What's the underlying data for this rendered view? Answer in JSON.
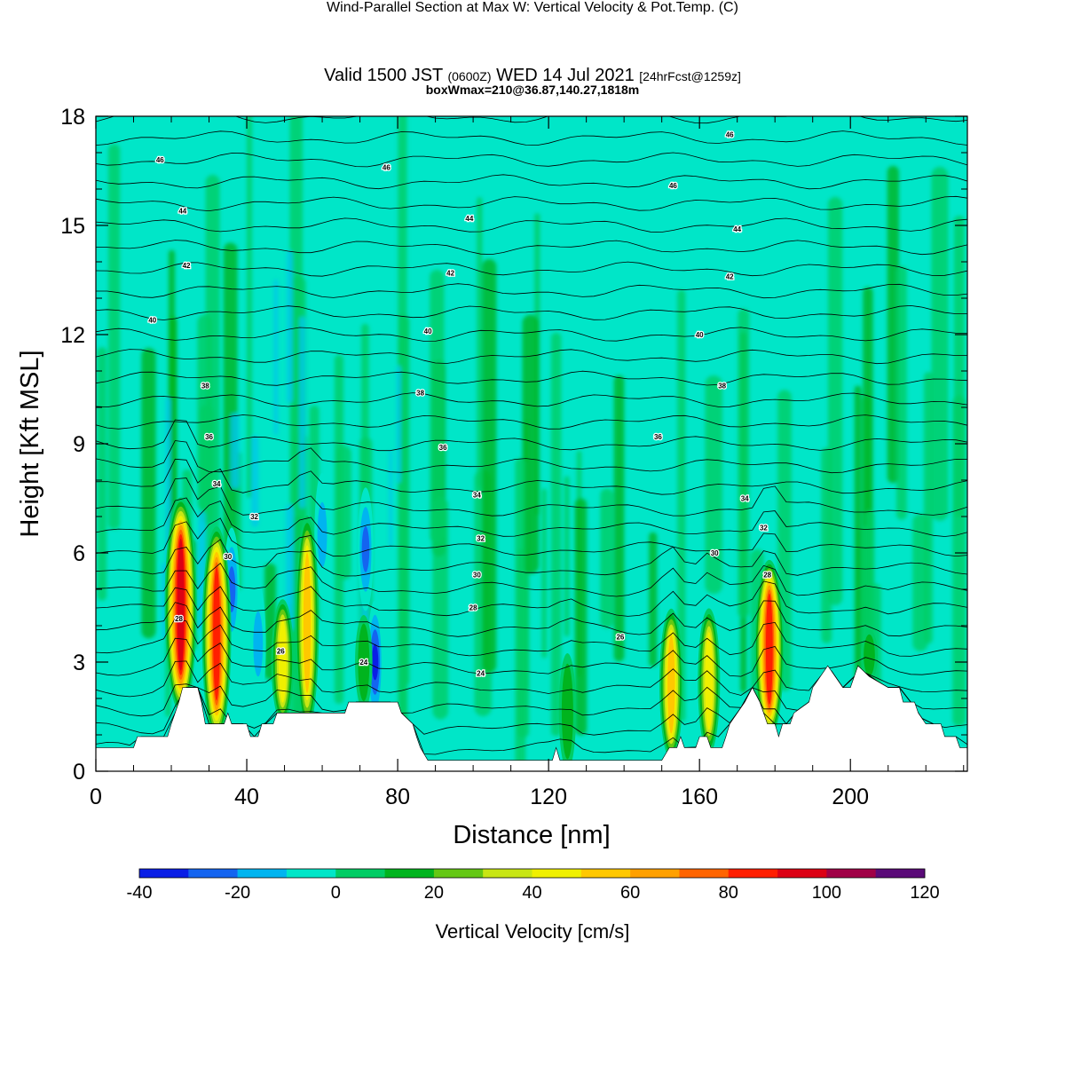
{
  "header": {
    "title": "Wind-Parallel Section at Max W: Vertical Velocity & Pot.Temp.",
    "copyright": "(C)",
    "valid_a": "Valid 1500 JST",
    "valid_z": "(0600Z)",
    "valid_b": "WED 14 Jul 2021",
    "forecast": "[24hrFcst@1259z]",
    "boxinfo": "boxWmax=210@36.87,140.27,1818m"
  },
  "chart_data": {
    "type": "heatmap",
    "xlabel": "Distance [nm]",
    "ylabel": "Height [Kft MSL]",
    "xlim": [
      0,
      231
    ],
    "ylim": [
      0,
      18
    ],
    "x_ticks": [
      0,
      40,
      80,
      120,
      160,
      200
    ],
    "y_ticks": [
      0,
      3,
      6,
      9,
      12,
      15,
      18
    ],
    "colorbar": {
      "label": "Vertical Velocity [cm/s]",
      "levels": [
        -40,
        -20,
        0,
        20,
        40,
        60,
        80,
        100,
        120
      ],
      "colors": [
        "#0a1ee6",
        "#1464f0",
        "#00b4f0",
        "#00e6c8",
        "#00cd64",
        "#00b41e",
        "#64c814",
        "#c8e614",
        "#f0f000",
        "#ffc800",
        "#ffa000",
        "#ff6400",
        "#ff1e00",
        "#dc0014",
        "#a00046",
        "#5a0a78"
      ]
    },
    "updrafts": [
      {
        "x": 22.5,
        "top": 8.0,
        "peak": 100
      },
      {
        "x": 32,
        "top": 7.2,
        "peak": 85
      },
      {
        "x": 49.5,
        "top": 5.0,
        "peak": 50
      },
      {
        "x": 56,
        "top": 7.5,
        "peak": 55
      },
      {
        "x": 71,
        "top": 4.5,
        "peak": 22
      },
      {
        "x": 125,
        "top": 3.5,
        "peak": 22
      },
      {
        "x": 152.5,
        "top": 4.8,
        "peak": 55
      },
      {
        "x": 162.5,
        "top": 4.8,
        "peak": 48
      },
      {
        "x": 178.5,
        "top": 6.2,
        "peak": 85
      },
      {
        "x": 205,
        "top": 4.0,
        "peak": 20
      }
    ],
    "downdrafts": [
      {
        "x": 74,
        "y": 3.0,
        "value": -35
      },
      {
        "x": 71.5,
        "y": 6.1,
        "value": -28
      },
      {
        "x": 36,
        "y": 5.0,
        "value": -25
      },
      {
        "x": 60,
        "y": 6.5,
        "value": -20
      },
      {
        "x": 43,
        "y": 3.5,
        "value": -15
      }
    ],
    "terrain": [
      [
        0,
        0.65
      ],
      [
        10,
        0.65
      ],
      [
        11,
        0.95
      ],
      [
        19,
        0.95
      ],
      [
        20,
        1.3
      ],
      [
        21,
        1.6
      ],
      [
        22,
        1.9
      ],
      [
        23,
        2.3
      ],
      [
        27,
        2.3
      ],
      [
        28,
        1.9
      ],
      [
        29,
        1.3
      ],
      [
        34,
        1.3
      ],
      [
        35,
        1.6
      ],
      [
        36,
        1.3
      ],
      [
        40,
        1.3
      ],
      [
        41,
        0.95
      ],
      [
        43,
        0.95
      ],
      [
        44,
        1.3
      ],
      [
        47,
        1.3
      ],
      [
        48,
        1.6
      ],
      [
        66,
        1.6
      ],
      [
        67,
        1.9
      ],
      [
        80,
        1.9
      ],
      [
        81,
        1.6
      ],
      [
        84,
        1.3
      ],
      [
        85,
        0.95
      ],
      [
        86,
        0.65
      ],
      [
        88,
        0.3
      ],
      [
        121,
        0.3
      ],
      [
        122,
        0.65
      ],
      [
        123,
        0.3
      ],
      [
        150,
        0.3
      ],
      [
        152,
        0.65
      ],
      [
        154,
        0.65
      ],
      [
        155,
        0.95
      ],
      [
        156,
        0.65
      ],
      [
        159,
        0.65
      ],
      [
        160,
        0.95
      ],
      [
        162,
        0.95
      ],
      [
        163,
        0.65
      ],
      [
        166,
        0.65
      ],
      [
        167,
        0.95
      ],
      [
        168,
        1.3
      ],
      [
        170,
        1.6
      ],
      [
        172,
        1.9
      ],
      [
        174,
        2.3
      ],
      [
        176,
        1.9
      ],
      [
        177,
        1.6
      ],
      [
        178,
        1.3
      ],
      [
        180,
        1.3
      ],
      [
        181,
        0.95
      ],
      [
        182,
        1.3
      ],
      [
        184,
        1.3
      ],
      [
        185,
        1.6
      ],
      [
        189,
        1.9
      ],
      [
        190,
        2.3
      ],
      [
        192,
        2.6
      ],
      [
        194,
        2.9
      ],
      [
        196,
        2.6
      ],
      [
        198,
        2.3
      ],
      [
        200,
        2.3
      ],
      [
        201,
        2.6
      ],
      [
        202,
        2.9
      ],
      [
        205,
        2.6
      ],
      [
        210,
        2.3
      ],
      [
        213,
        2.3
      ],
      [
        214,
        1.9
      ],
      [
        217,
        1.9
      ],
      [
        218,
        1.6
      ],
      [
        220,
        1.3
      ],
      [
        224,
        1.3
      ],
      [
        225,
        0.95
      ],
      [
        228,
        0.95
      ],
      [
        229,
        0.65
      ],
      [
        231,
        0.65
      ]
    ],
    "theta_labels": [
      {
        "x": 17,
        "y": 16.8,
        "text": "46"
      },
      {
        "x": 77,
        "y": 16.6,
        "text": "46"
      },
      {
        "x": 168,
        "y": 17.5,
        "text": "46"
      },
      {
        "x": 153,
        "y": 16.1,
        "text": "46"
      },
      {
        "x": 23,
        "y": 15.4,
        "text": "44"
      },
      {
        "x": 99,
        "y": 15.2,
        "text": "44"
      },
      {
        "x": 170,
        "y": 14.9,
        "text": "44"
      },
      {
        "x": 24,
        "y": 13.9,
        "text": "42"
      },
      {
        "x": 94,
        "y": 13.7,
        "text": "42"
      },
      {
        "x": 168,
        "y": 13.6,
        "text": "42"
      },
      {
        "x": 15,
        "y": 12.4,
        "text": "40"
      },
      {
        "x": 88,
        "y": 12.1,
        "text": "40"
      },
      {
        "x": 160,
        "y": 12.0,
        "text": "40"
      },
      {
        "x": 29,
        "y": 10.6,
        "text": "38"
      },
      {
        "x": 86,
        "y": 10.4,
        "text": "38"
      },
      {
        "x": 166,
        "y": 10.6,
        "text": "38"
      },
      {
        "x": 30,
        "y": 9.2,
        "text": "36"
      },
      {
        "x": 92,
        "y": 8.9,
        "text": "36"
      },
      {
        "x": 149,
        "y": 9.2,
        "text": "36"
      },
      {
        "x": 32,
        "y": 7.9,
        "text": "34"
      },
      {
        "x": 101,
        "y": 7.6,
        "text": "34"
      },
      {
        "x": 172,
        "y": 7.5,
        "text": "34"
      },
      {
        "x": 42,
        "y": 7.0,
        "text": "32"
      },
      {
        "x": 102,
        "y": 6.4,
        "text": "32"
      },
      {
        "x": 177,
        "y": 6.7,
        "text": "32"
      },
      {
        "x": 35,
        "y": 5.9,
        "text": "30"
      },
      {
        "x": 101,
        "y": 5.4,
        "text": "30"
      },
      {
        "x": 164,
        "y": 6.0,
        "text": "30"
      },
      {
        "x": 22,
        "y": 4.2,
        "text": "28"
      },
      {
        "x": 100,
        "y": 4.5,
        "text": "28"
      },
      {
        "x": 178,
        "y": 5.4,
        "text": "28"
      },
      {
        "x": 49,
        "y": 3.3,
        "text": "26"
      },
      {
        "x": 139,
        "y": 3.7,
        "text": "26"
      },
      {
        "x": 71,
        "y": 3.0,
        "text": "24"
      },
      {
        "x": 102,
        "y": 2.7,
        "text": "24"
      }
    ]
  }
}
